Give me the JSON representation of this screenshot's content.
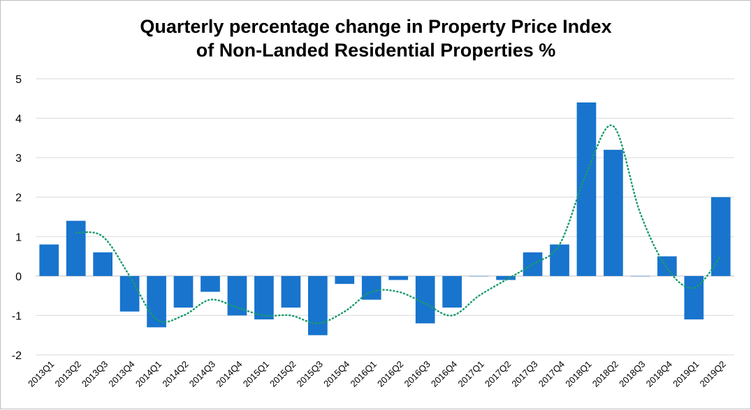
{
  "chart_data": {
    "type": "bar",
    "title_lines": [
      "Quarterly percentage change in Property Price Index",
      "of Non-Landed Residential Properties %"
    ],
    "xlabel": "",
    "ylabel": "",
    "ylim": [
      -2,
      5
    ],
    "yticks": [
      "5",
      "4",
      "3",
      "2",
      "1",
      "0",
      "-1",
      "-2"
    ],
    "grid": true,
    "legend": "none",
    "categories": [
      "2013Q1",
      "2013Q2",
      "2013Q3",
      "2013Q4",
      "2014Q1",
      "2014Q2",
      "2014Q3",
      "2014Q4",
      "2015Q1",
      "2015Q2",
      "2015Q3",
      "2015Q4",
      "2016Q1",
      "2016Q2",
      "2016Q3",
      "2016Q4",
      "2017Q1",
      "2017Q2",
      "2017Q3",
      "2017Q4",
      "2018Q1",
      "2018Q2",
      "2018Q3",
      "2018Q4",
      "2019Q1",
      "2019Q2"
    ],
    "series": [
      {
        "type": "bar",
        "color": "#1874CD",
        "values": [
          0.8,
          1.4,
          0.6,
          -0.9,
          -1.3,
          -0.8,
          -0.4,
          -1.0,
          -1.1,
          -0.8,
          -1.5,
          -0.2,
          -0.6,
          -0.1,
          -1.2,
          -0.8,
          0.0,
          -0.1,
          0.6,
          0.8,
          4.4,
          3.2,
          0.0,
          0.5,
          -1.1,
          2.0
        ]
      },
      {
        "type": "line",
        "style": "dotted",
        "color": "#1a9c6c",
        "values": [
          null,
          1.1,
          1.0,
          0.0,
          -1.1,
          -1.0,
          -0.6,
          -0.8,
          -1.0,
          -1.0,
          -1.2,
          -0.9,
          -0.4,
          -0.4,
          -0.7,
          -1.0,
          -0.5,
          -0.1,
          0.3,
          0.8,
          2.6,
          3.8,
          1.6,
          0.2,
          -0.3,
          0.5
        ]
      }
    ]
  }
}
